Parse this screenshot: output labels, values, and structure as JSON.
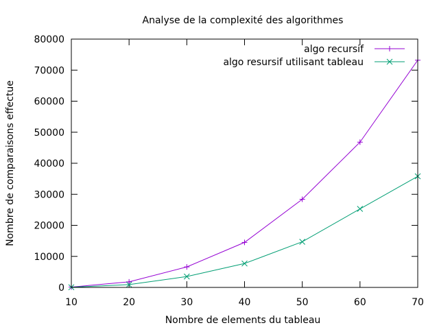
{
  "chart_data": {
    "type": "line",
    "title": "Analyse de la complexité des algorithmes",
    "xlabel": "Nombre de elements du tableau",
    "ylabel": "Nombre de comparaisons effectue",
    "x": [
      10,
      20,
      30,
      40,
      50,
      60,
      70
    ],
    "xlim": [
      10,
      70
    ],
    "ylim": [
      0,
      80000
    ],
    "xticks": [
      10,
      20,
      30,
      40,
      50,
      60,
      70
    ],
    "yticks": [
      0,
      10000,
      20000,
      30000,
      40000,
      50000,
      60000,
      70000,
      80000
    ],
    "grid": false,
    "legend_position": "top-right",
    "series": [
      {
        "name": "algo recursif",
        "marker": "plus",
        "color": "#9400d3",
        "values": [
          110,
          1800,
          6600,
          14500,
          28400,
          46800,
          73200
        ]
      },
      {
        "name": "algo resursif utilisant tableau",
        "marker": "cross",
        "color": "#009e73",
        "values": [
          55,
          900,
          3500,
          7700,
          14700,
          25300,
          35800
        ]
      }
    ]
  }
}
